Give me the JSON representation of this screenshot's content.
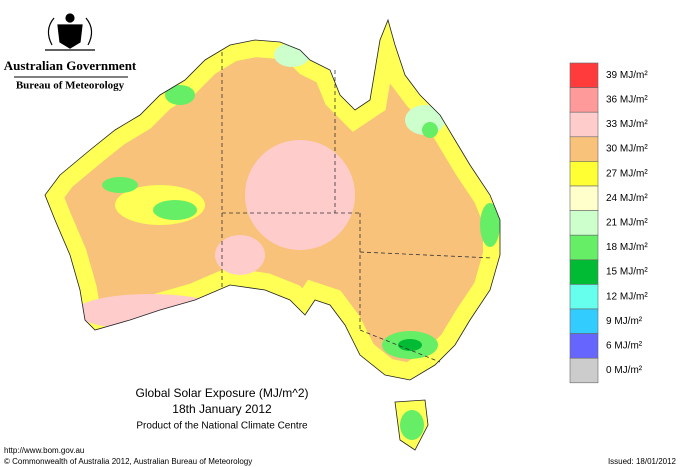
{
  "header": {
    "agency": "Australian Government",
    "bureau": "Bureau of Meteorology"
  },
  "title": {
    "main": "Global Solar Exposure (MJ/m^2)",
    "date": "18th January 2012",
    "product": "Product of the National Climate Centre"
  },
  "legend": [
    {
      "label": "39 MJ/m²",
      "color": "#ff3b3b"
    },
    {
      "label": "36 MJ/m²",
      "color": "#ff9a9a"
    },
    {
      "label": "33 MJ/m²",
      "color": "#ffcccc"
    },
    {
      "label": "30 MJ/m²",
      "color": "#f8c27a"
    },
    {
      "label": "27 MJ/m²",
      "color": "#ffff33"
    },
    {
      "label": "24 MJ/m²",
      "color": "#ffffcc"
    },
    {
      "label": "21 MJ/m²",
      "color": "#ccffcc"
    },
    {
      "label": "18 MJ/m²",
      "color": "#66ee66"
    },
    {
      "label": "15 MJ/m²",
      "color": "#00bb33"
    },
    {
      "label": "12 MJ/m²",
      "color": "#66ffee"
    },
    {
      "label": "9 MJ/m²",
      "color": "#33ccff"
    },
    {
      "label": "6 MJ/m²",
      "color": "#6666ff"
    },
    {
      "label": "0 MJ/m²",
      "color": "#cccccc"
    }
  ],
  "footer": {
    "url": "http://www.bom.gov.au",
    "copyright": "© Commonwealth of Australia 2012, Australian Bureau of Meteorology",
    "issued": "Issued: 18/01/2012"
  }
}
